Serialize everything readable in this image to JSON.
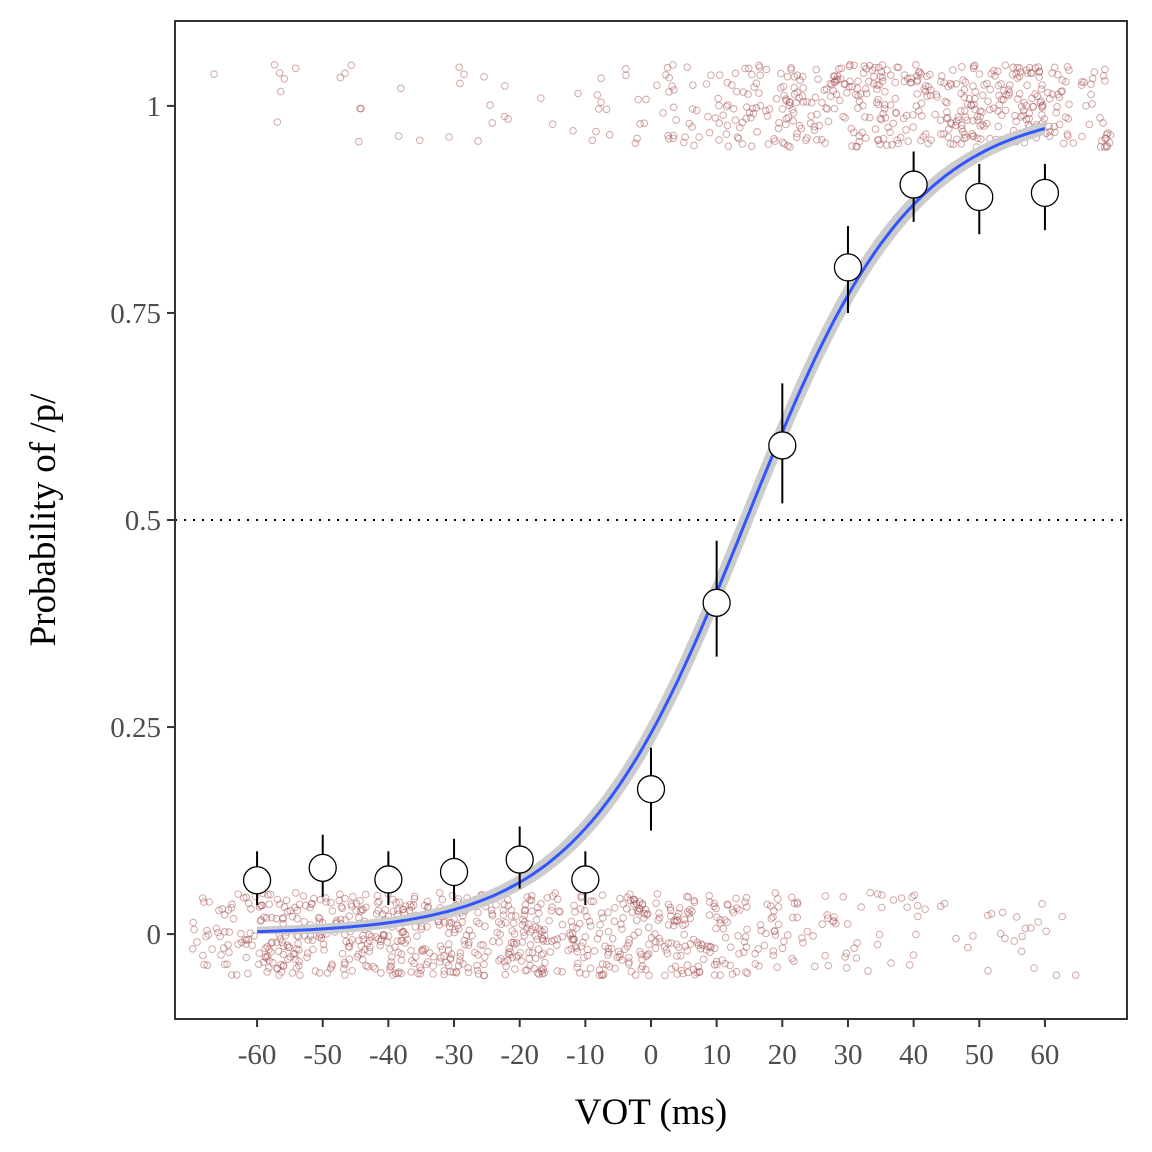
{
  "chart_data": {
    "type": "scatter",
    "xlabel": "VOT (ms)",
    "ylabel": "Probability of /p/",
    "xlim": [
      -72.5,
      72.5
    ],
    "ylim": [
      -0.1025,
      1.1025
    ],
    "xticks": [
      -60,
      -50,
      -40,
      -30,
      -20,
      -10,
      0,
      10,
      20,
      30,
      40,
      50,
      60
    ],
    "yticks": [
      0,
      0.25,
      0.5,
      0.75,
      1
    ],
    "ytick_labels": [
      "0",
      "0.25",
      "0.5",
      "0.75",
      "1"
    ],
    "reference_line": {
      "y": 0.5,
      "style": "dotted"
    },
    "grid": false,
    "legend": "none",
    "series": [
      {
        "kind": "observed means with error bars",
        "x": [
          -60,
          -50,
          -40,
          -30,
          -20,
          -10,
          0,
          10,
          20,
          30,
          40,
          50,
          60
        ],
        "y": [
          0.065,
          0.08,
          0.066,
          0.075,
          0.09,
          0.066,
          0.175,
          0.4,
          0.59,
          0.805,
          0.905,
          0.89,
          0.895
        ],
        "lower": [
          0.035,
          0.045,
          0.035,
          0.04,
          0.055,
          0.035,
          0.125,
          0.335,
          0.52,
          0.75,
          0.86,
          0.845,
          0.85
        ],
        "upper": [
          0.1,
          0.12,
          0.1,
          0.115,
          0.13,
          0.1,
          0.225,
          0.475,
          0.665,
          0.855,
          0.945,
          0.93,
          0.93
        ]
      },
      {
        "kind": "logistic fit",
        "color": "#3355ff",
        "ribbon_color": "#cccccc",
        "x_range": [
          -60,
          60
        ],
        "midpoint": 14.5,
        "slope": 0.0785
      },
      {
        "kind": "jittered raw responses",
        "color": "#a85050",
        "responses": [
          0,
          1
        ],
        "jitter_x": 10,
        "jitter_y": 0.05,
        "counts_p": [
          5,
          5,
          5,
          7,
          7,
          7,
          18,
          45,
          66,
          90,
          101,
          100,
          100
        ],
        "counts_b": [
          105,
          105,
          105,
          102,
          101,
          103,
          90,
          66,
          45,
          22,
          12,
          12,
          12
        ]
      }
    ]
  }
}
